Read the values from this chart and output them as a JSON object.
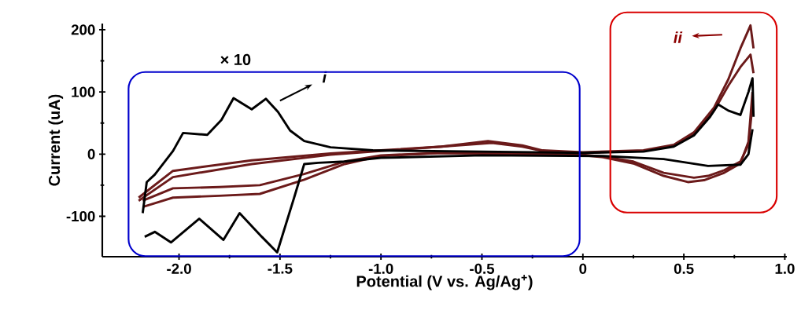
{
  "chart_data": {
    "type": "line",
    "xlabel": "Potential (V vs. Ag/Ag$^{+}$)",
    "ylabel": "Current (uA)",
    "xlim": [
      -2.38,
      1.01
    ],
    "ylim": [
      -165,
      210
    ],
    "xticks": [
      {
        "value": -2,
        "label": "-2.0"
      },
      {
        "value": -1.5,
        "label": "-1.5"
      },
      {
        "value": -1,
        "label": "-1.0"
      },
      {
        "value": -0.5,
        "label": "-0.5"
      },
      0,
      0.5,
      {
        "value": 1,
        "label": "1.0"
      }
    ],
    "yticks": [
      -100,
      0,
      100,
      200
    ],
    "marker": "none",
    "line_style": "solid",
    "annotations": [
      "× 10",
      "i",
      "ii"
    ],
    "series": [
      {
        "color": "#6b1a1a",
        "x": [
          -2.2,
          -2.03,
          -1.64,
          -1.25,
          -1.0,
          -0.7,
          -0.47,
          -0.3,
          -0.2,
          0,
          0.3,
          0.45,
          0.55,
          0.65,
          0.72,
          0.78,
          0.83,
          0.845
        ],
        "values": [
          -75,
          -37,
          -16,
          -1,
          5,
          12,
          21,
          14,
          6,
          3,
          6,
          15,
          35,
          75,
          120,
          170,
          207,
          170
        ]
      },
      {
        "color": "#6b1a1a",
        "x": [
          0.84,
          0.82,
          0.78,
          0.7,
          0.6,
          0.52,
          0.4,
          0.25,
          0.1,
          0,
          -0.3,
          -0.7,
          -1.0,
          -1.18,
          -1.38,
          -1.6,
          -1.8,
          -2.03,
          -2.18
        ],
        "values": [
          100,
          20,
          -15,
          -30,
          -42,
          -45,
          -35,
          -15,
          -5,
          -2,
          0,
          2,
          -3,
          -16,
          -41,
          -64,
          -67,
          -70,
          -85
        ]
      },
      {
        "color": "#6b1a1a",
        "x": [
          -2.2,
          -2.03,
          -1.64,
          -1.25,
          -1.0,
          -0.7,
          -0.45,
          -0.3,
          -0.2,
          0,
          0.3,
          0.45,
          0.55,
          0.65,
          0.72,
          0.78,
          0.83,
          0.845
        ],
        "values": [
          -70,
          -27,
          -10,
          1,
          6,
          12,
          18,
          12,
          5,
          2,
          5,
          13,
          32,
          70,
          110,
          140,
          160,
          130
        ]
      },
      {
        "color": "#6b1a1a",
        "x": [
          0.84,
          0.82,
          0.78,
          0.7,
          0.62,
          0.55,
          0.4,
          0.25,
          0.1,
          0,
          -0.3,
          -0.7,
          -1.0,
          -1.18,
          -1.38,
          -1.6,
          -1.8,
          -2.03,
          -2.18
        ],
        "values": [
          80,
          15,
          -12,
          -26,
          -35,
          -38,
          -30,
          -12,
          -4,
          -1,
          1,
          2,
          -2,
          -12,
          -32,
          -50,
          -53,
          -55,
          -75
        ]
      },
      {
        "color": "#000000",
        "x": [
          0.84,
          0.82,
          0.78,
          0.62,
          0.4,
          0.1,
          -0.5,
          -1.0,
          -1.18,
          -1.31,
          -1.38,
          -1.43,
          -1.514,
          -1.59,
          -1.7,
          -1.78,
          -1.9,
          -2.04,
          -2.12,
          -2.17
        ],
        "values": [
          40,
          0,
          -17,
          -19,
          -8,
          -3,
          -2,
          -6,
          -12,
          -14,
          -16,
          -70,
          -158,
          -133,
          -95,
          -138,
          -104,
          -142,
          -125,
          -133
        ]
      },
      {
        "color": "#000000",
        "x": [
          -2.18,
          -2.16,
          -2.12,
          -2.03,
          -1.98,
          -1.86,
          -1.79,
          -1.73,
          -1.64,
          -1.57,
          -1.51,
          -1.45,
          -1.38,
          -1.25,
          -1.04,
          -0.5,
          0,
          0.3,
          0.45,
          0.55,
          0.63,
          0.67,
          0.72,
          0.78,
          0.82,
          0.84,
          0.845
        ],
        "values": [
          -95,
          -45,
          -33,
          5,
          34,
          31,
          55,
          90,
          72,
          89,
          68,
          38,
          21,
          11,
          6,
          4,
          2,
          4,
          12,
          30,
          60,
          80,
          70,
          63,
          100,
          122,
          60
        ]
      }
    ]
  }
}
